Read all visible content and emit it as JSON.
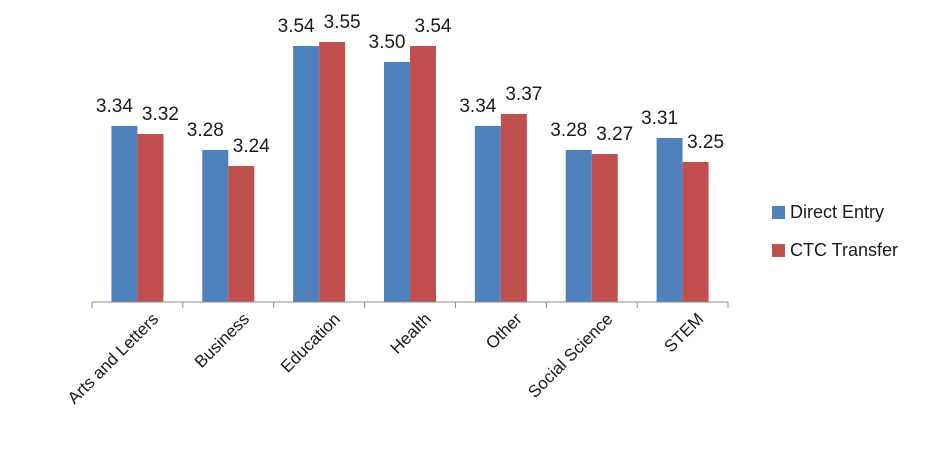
{
  "chart_data": {
    "type": "bar",
    "title": "",
    "xlabel": "",
    "ylabel": "",
    "ylim": [
      2.9,
      3.6
    ],
    "grid": false,
    "legend": "right",
    "categories": [
      "Arts and Letters",
      "Business",
      "Education",
      "Health",
      "Other",
      "Social Science",
      "STEM"
    ],
    "series": [
      {
        "name": "Direct Entry",
        "color": "#4f81bd",
        "values": [
          3.34,
          3.28,
          3.54,
          3.5,
          3.34,
          3.28,
          3.31
        ],
        "labels": [
          "3.34",
          "3.28",
          "3.54",
          "3.50",
          "3.34",
          "3.28",
          "3.31"
        ]
      },
      {
        "name": "CTC Transfer",
        "color": "#c0504d",
        "values": [
          3.32,
          3.24,
          3.55,
          3.54,
          3.37,
          3.27,
          3.25
        ],
        "labels": [
          "3.32",
          "3.24",
          "3.55",
          "3.54",
          "3.37",
          "3.27",
          "3.25"
        ]
      }
    ]
  }
}
